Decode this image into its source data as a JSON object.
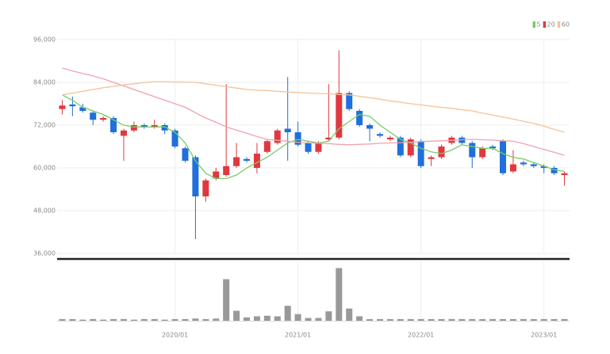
{
  "chart_data": {
    "type": "candlestick",
    "categories": [
      null,
      null,
      null,
      null,
      null,
      null,
      null,
      null,
      null,
      null,
      null,
      "2020/01",
      null,
      null,
      null,
      null,
      null,
      null,
      null,
      null,
      null,
      null,
      null,
      "2021/01",
      null,
      null,
      null,
      null,
      null,
      null,
      null,
      null,
      null,
      null,
      null,
      "2022/01",
      null,
      null,
      null,
      null,
      null,
      null,
      null,
      null,
      null,
      null,
      null,
      "2023/01",
      null,
      null
    ],
    "open": [
      76500,
      77800,
      77000,
      75500,
      73500,
      74000,
      69000,
      70500,
      72000,
      71500,
      72000,
      70500,
      65500,
      63000,
      52000,
      57000,
      58000,
      60500,
      62500,
      60000,
      64500,
      67000,
      71000,
      70000,
      67000,
      64500,
      68000,
      68500,
      81000,
      76000,
      72000,
      69500,
      68000,
      68500,
      63500,
      67500,
      62500,
      63000,
      67000,
      68500,
      67000,
      63000,
      66000,
      67500,
      59000,
      61500,
      61000,
      60500,
      60000,
      58000
    ],
    "high": [
      79000,
      80000,
      78000,
      76000,
      74500,
      74500,
      71000,
      73000,
      72500,
      73500,
      72500,
      71000,
      66000,
      63500,
      57000,
      60000,
      83500,
      67000,
      63000,
      67000,
      68000,
      71000,
      85500,
      73000,
      67500,
      67500,
      83500,
      93000,
      81500,
      76500,
      72500,
      70000,
      69000,
      69000,
      68500,
      68000,
      63500,
      66500,
      69000,
      69000,
      67500,
      66000,
      66500,
      68000,
      65000,
      62000,
      61500,
      61000,
      60500,
      59000
    ],
    "low": [
      75000,
      74500,
      75500,
      72000,
      73000,
      69500,
      62000,
      70000,
      71000,
      71000,
      69500,
      65500,
      61500,
      40000,
      50500,
      56500,
      57500,
      60000,
      61500,
      58500,
      64000,
      66500,
      62000,
      66000,
      64000,
      64000,
      67500,
      68000,
      76000,
      71500,
      67500,
      68500,
      67500,
      63000,
      63000,
      60000,
      60500,
      62500,
      66500,
      66500,
      60000,
      62500,
      65000,
      58000,
      58500,
      60500,
      60000,
      58500,
      58000,
      55000
    ],
    "close": [
      77500,
      77300,
      76000,
      73500,
      74000,
      70000,
      70500,
      72000,
      71500,
      72000,
      70500,
      66000,
      62000,
      52000,
      56500,
      59000,
      60500,
      63000,
      62000,
      64000,
      67500,
      70500,
      70000,
      66500,
      64500,
      67000,
      68500,
      81000,
      76500,
      72000,
      71000,
      69000,
      68500,
      63500,
      68000,
      60500,
      63000,
      66000,
      68500,
      67000,
      63000,
      65500,
      65500,
      58500,
      61000,
      61000,
      60500,
      60000,
      58500,
      58500
    ],
    "up_color": "#e0383e",
    "down_color": "#1f6fdc",
    "series": [
      {
        "name": "5",
        "color": "#78cc66",
        "values": [
          80500,
          79000,
          77000,
          76000,
          75000,
          73500,
          72000,
          71500,
          71500,
          71500,
          71500,
          70000,
          67000,
          62000,
          58500,
          57000,
          57000,
          58000,
          60000,
          61500,
          63000,
          65000,
          67000,
          68000,
          67500,
          67000,
          67500,
          71000,
          73000,
          75000,
          74500,
          72000,
          70000,
          68000,
          67000,
          65500,
          64500,
          64000,
          65000,
          66500,
          66000,
          65500,
          65500,
          64000,
          63000,
          62500,
          61500,
          60500,
          59500,
          59000
        ]
      },
      {
        "name": "20",
        "color": "#f0a2ad",
        "values": [
          88000,
          87200,
          86500,
          85800,
          85000,
          84000,
          83000,
          82000,
          81000,
          80000,
          79000,
          78000,
          77000,
          75500,
          74000,
          72800,
          71500,
          70600,
          69700,
          68800,
          68000,
          67700,
          67500,
          67200,
          67000,
          66900,
          66800,
          66600,
          66500,
          66600,
          66700,
          66900,
          67000,
          67100,
          67200,
          67400,
          67500,
          67600,
          67700,
          67900,
          68000,
          67900,
          67800,
          67600,
          67500,
          66800,
          66000,
          65200,
          64400,
          63500
        ]
      },
      {
        "name": "60",
        "color": "#f5c398",
        "values": [
          80500,
          81000,
          81500,
          82000,
          82500,
          82900,
          83300,
          83600,
          83900,
          84200,
          84200,
          84100,
          84100,
          84000,
          83600,
          83200,
          82800,
          82400,
          82000,
          81800,
          81700,
          81500,
          81300,
          81200,
          81000,
          80900,
          80800,
          80600,
          80500,
          80100,
          79700,
          79300,
          78800,
          78400,
          78000,
          77700,
          77300,
          77000,
          76700,
          76300,
          76000,
          75400,
          74800,
          74300,
          73700,
          73100,
          72500,
          71700,
          70800,
          70000
        ]
      }
    ],
    "legend": "top-right",
    "ylim": [
      36000,
      96000
    ],
    "yticks": [
      {
        "value": 36000,
        "label": "36,000"
      },
      {
        "value": 48000,
        "label": "48,000"
      },
      {
        "value": 60000,
        "label": "60,000"
      },
      {
        "value": 72000,
        "label": "72,000"
      },
      {
        "value": 84000,
        "label": "84,000"
      },
      {
        "value": 96000,
        "label": "96,000"
      }
    ],
    "grid": true,
    "volume": {
      "color": "#999999",
      "ylim": [
        0,
        100
      ],
      "values": [
        3,
        3,
        2,
        3,
        2,
        3,
        3,
        2,
        3,
        3,
        2,
        3,
        3,
        4,
        3,
        4,
        75,
        18,
        6,
        8,
        9,
        8,
        27,
        12,
        5,
        5,
        17,
        95,
        22,
        8,
        3,
        3,
        3,
        3,
        3,
        3,
        3,
        3,
        3,
        3,
        3,
        3,
        3,
        3,
        3,
        3,
        3,
        3,
        3,
        3
      ]
    }
  }
}
